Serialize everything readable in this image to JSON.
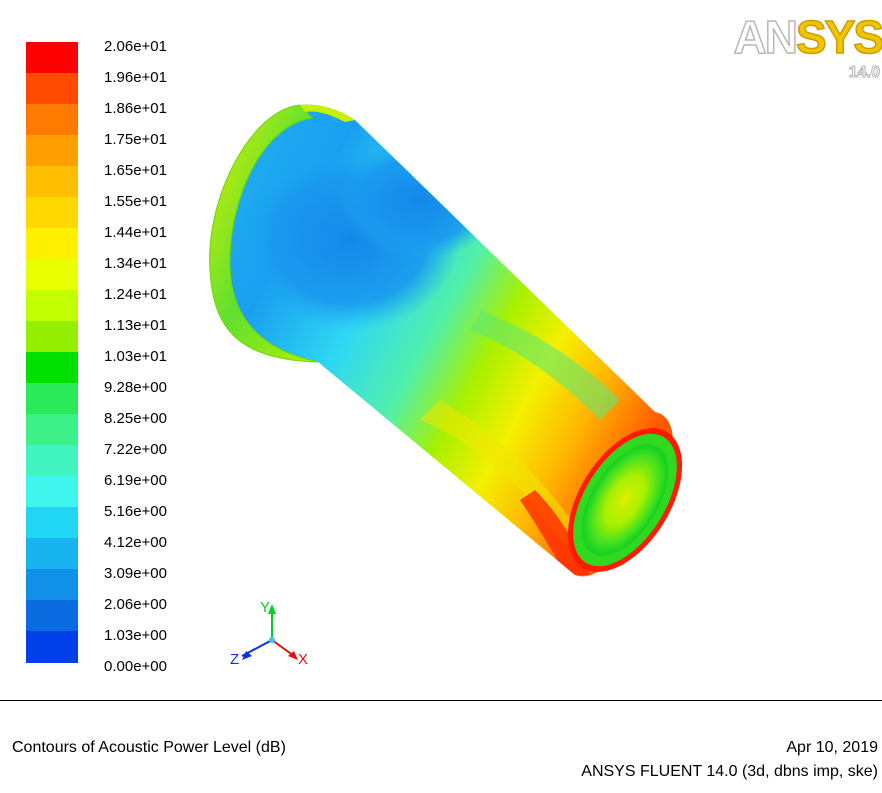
{
  "window": {
    "caption": "Contours of Acoustic Power Level (dB)",
    "date": "Apr 10, 2019",
    "product": "ANSYS FLUENT 14.0 (3d, dbns imp, ske)"
  },
  "logo": {
    "brand_left": "AN",
    "brand_right": "SYS",
    "version": "14.0"
  },
  "colorbar": {
    "labels": [
      "2.06e+01",
      "1.96e+01",
      "1.86e+01",
      "1.75e+01",
      "1.65e+01",
      "1.55e+01",
      "1.44e+01",
      "1.34e+01",
      "1.24e+01",
      "1.13e+01",
      "1.03e+01",
      "9.28e+00",
      "8.25e+00",
      "7.22e+00",
      "6.19e+00",
      "5.16e+00",
      "4.12e+00",
      "3.09e+00",
      "2.06e+00",
      "1.03e+00",
      "0.00e+00"
    ],
    "colors": [
      "#ff0000",
      "#ff4a00",
      "#ff7a00",
      "#ffa000",
      "#ffbf00",
      "#ffd800",
      "#fff000",
      "#e8ff00",
      "#c2ff00",
      "#94f000",
      "#00e000",
      "#2aea5a",
      "#3cf08a",
      "#40f5c0",
      "#3ff5ee",
      "#22d6f5",
      "#18b4f0",
      "#1190ea",
      "#0a6ae0",
      "#0040e8",
      "#0000ff"
    ]
  },
  "triad": {
    "y": "Y",
    "z": "Z",
    "x": "X"
  }
}
